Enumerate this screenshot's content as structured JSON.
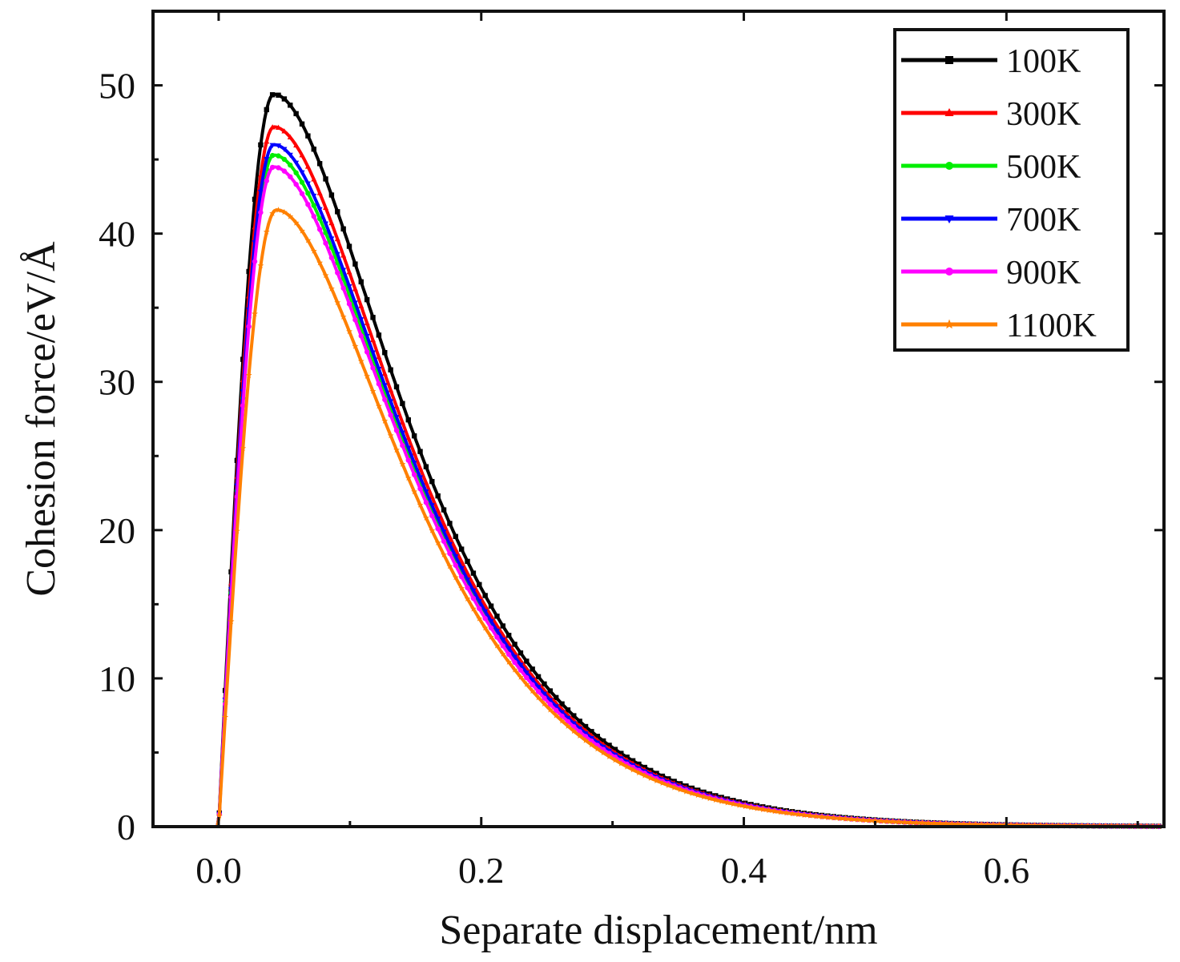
{
  "chart_data": {
    "type": "line",
    "title": "",
    "xlabel": "Separate displacement/nm",
    "ylabel": "Cohesion force/eV/Å",
    "xlim": [
      -0.05,
      0.72
    ],
    "ylim": [
      0,
      55
    ],
    "xticks": [
      0.0,
      0.2,
      0.4,
      0.6
    ],
    "xtick_labels": [
      "0.0",
      "0.2",
      "0.4",
      "0.6"
    ],
    "yticks": [
      0,
      10,
      20,
      30,
      40,
      50
    ],
    "ytick_labels": [
      "0",
      "10",
      "20",
      "30",
      "40",
      "50"
    ],
    "grid": false,
    "legend_position": "top-right",
    "series": [
      {
        "name": "100K",
        "color": "#000000",
        "marker": "square",
        "peak_x": 0.042,
        "peak_y": 49.4
      },
      {
        "name": "300K",
        "color": "#ff0000",
        "marker": "triangle-up",
        "peak_x": 0.042,
        "peak_y": 47.2
      },
      {
        "name": "500K",
        "color": "#00ee00",
        "marker": "circle",
        "peak_x": 0.042,
        "peak_y": 45.3
      },
      {
        "name": "700K",
        "color": "#0000ff",
        "marker": "triangle-down",
        "peak_x": 0.042,
        "peak_y": 46.0
      },
      {
        "name": "900K",
        "color": "#ff00ff",
        "marker": "circle",
        "peak_x": 0.042,
        "peak_y": 44.5
      },
      {
        "name": "1100K",
        "color": "#ff8000",
        "marker": "star",
        "peak_x": 0.044,
        "peak_y": 41.6
      }
    ]
  }
}
